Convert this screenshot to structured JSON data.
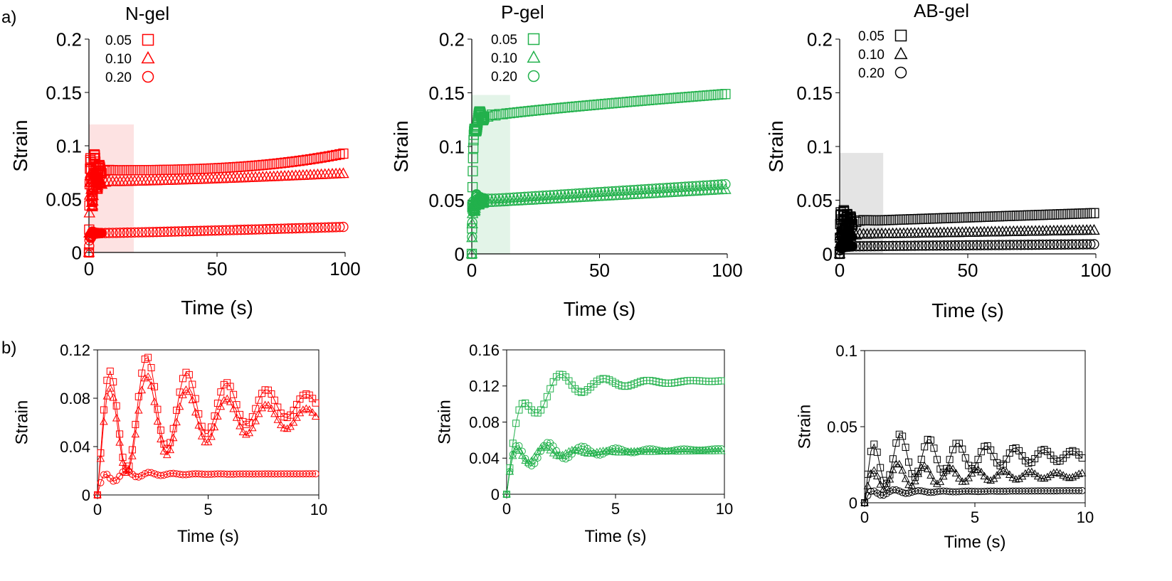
{
  "figure": {
    "panel_labels": [
      "a)",
      "b)"
    ]
  },
  "legend_labels": [
    "0.05",
    "0.10",
    "0.20"
  ],
  "chart_data": [
    {
      "id": "a1",
      "type": "scatter",
      "title": "N-gel",
      "color": "#ff0000",
      "xlabel": "Time (s)",
      "ylabel": "Strain",
      "xlim": [
        0,
        100
      ],
      "ylim": [
        0,
        0.2
      ],
      "xticks": [
        0,
        50,
        100
      ],
      "xtick_labels": [
        "0",
        "50",
        "100"
      ],
      "yticks": [
        0,
        0.05,
        0.1,
        0.15,
        0.2
      ],
      "ytick_labels": [
        "0",
        "0.05",
        "0.1",
        "0.15",
        "0.2"
      ],
      "shade": {
        "x": [
          0,
          17.5
        ],
        "y": [
          0,
          0.12
        ],
        "color": "#fde2e2"
      },
      "legend": "top-left",
      "series": [
        {
          "name": "0.05",
          "marker": "square",
          "model": {
            "A": 0.077,
            "final": 0.093,
            "tau": 0.4,
            "damp": 1.6,
            "period": 1.8,
            "amp": 0.8,
            "curve": 3,
            "sparse": 5
          }
        },
        {
          "name": "0.10",
          "marker": "triangle",
          "model": {
            "A": 0.066,
            "final": 0.074,
            "tau": 0.4,
            "damp": 1.6,
            "period": 1.8,
            "amp": 0.75,
            "curve": 1.4,
            "sparse": 5
          }
        },
        {
          "name": "0.20",
          "marker": "circle",
          "model": {
            "A": 0.018,
            "final": 0.024,
            "tau": 0.3,
            "damp": 1.0,
            "period": 1.1,
            "amp": 0.4,
            "curve": 1.2,
            "sparse": 5
          }
        }
      ]
    },
    {
      "id": "a2",
      "type": "scatter",
      "title": "P-gel",
      "color": "#22b14c",
      "xlabel": "Time (s)",
      "ylabel": "Strain",
      "xlim": [
        0,
        100
      ],
      "ylim": [
        0,
        0.2
      ],
      "xticks": [
        0,
        50,
        100
      ],
      "xtick_labels": [
        "0",
        "50",
        "100"
      ],
      "yticks": [
        0,
        0.05,
        0.1,
        0.15,
        0.2
      ],
      "ytick_labels": [
        "0",
        "0.05",
        "0.1",
        "0.15",
        "0.2"
      ],
      "shade": {
        "x": [
          0,
          15
        ],
        "y": [
          0,
          0.148
        ],
        "color": "#e3f4e8"
      },
      "legend": "top-left",
      "series": [
        {
          "name": "0.05",
          "marker": "square",
          "model": {
            "A": 0.126,
            "final": 0.149,
            "tau": 0.5,
            "damp": 2.5,
            "period": 2.5,
            "amp": 0.15,
            "curve": 0.8,
            "sparse": 5
          }
        },
        {
          "name": "0.10",
          "marker": "triangle",
          "model": {
            "A": 0.047,
            "final": 0.06,
            "tau": 0.3,
            "damp": 1.2,
            "period": 1.5,
            "amp": 0.35,
            "curve": 1,
            "sparse": 5
          }
        },
        {
          "name": "0.20",
          "marker": "circle",
          "model": {
            "A": 0.05,
            "final": 0.065,
            "tau": 0.3,
            "damp": 1.8,
            "period": 1.5,
            "amp": 0.3,
            "curve": 1,
            "sparse": 5
          }
        }
      ]
    },
    {
      "id": "a3",
      "type": "scatter",
      "title": "AB-gel",
      "color": "#000000",
      "xlabel": "Time (s)",
      "ylabel": "Strain",
      "xlim": [
        0,
        100
      ],
      "ylim": [
        0,
        0.2
      ],
      "xticks": [
        0,
        50,
        100
      ],
      "xtick_labels": [
        "0",
        "50",
        "100"
      ],
      "yticks": [
        0,
        0.05,
        0.1,
        0.15,
        0.2
      ],
      "ytick_labels": [
        "0",
        "0.05",
        "0.1",
        "0.15",
        "0.2"
      ],
      "shade": {
        "x": [
          0,
          17
        ],
        "y": [
          0,
          0.094
        ],
        "color": "#e4e4e4"
      },
      "legend": "top-left",
      "series": [
        {
          "name": "0.05",
          "marker": "square",
          "model": {
            "A": 0.03,
            "final": 0.038,
            "tau": 0.2,
            "damp": 3.0,
            "period": 1.3,
            "amp": 0.6,
            "curve": 1,
            "sparse": 5
          }
        },
        {
          "name": "0.10",
          "marker": "triangle",
          "model": {
            "A": 0.018,
            "final": 0.022,
            "tau": 0.2,
            "damp": 2.5,
            "period": 1.1,
            "amp": 0.6,
            "curve": 1,
            "sparse": 5
          }
        },
        {
          "name": "0.20",
          "marker": "circle",
          "model": {
            "A": 0.007,
            "final": 0.009,
            "tau": 0.2,
            "damp": 1.5,
            "period": 1.0,
            "amp": 0.4,
            "curve": 1,
            "sparse": 5
          }
        }
      ]
    },
    {
      "id": "b1",
      "type": "line",
      "title": "",
      "color": "#ff0000",
      "xlabel": "Time (s)",
      "ylabel": "Strain",
      "xlim": [
        0,
        10
      ],
      "ylim": [
        0,
        0.12
      ],
      "xticks": [
        0,
        5,
        10
      ],
      "xtick_labels": [
        "0",
        "5",
        "10"
      ],
      "yticks": [
        0,
        0.04,
        0.08,
        0.12
      ],
      "ytick_labels": [
        "0",
        "0.04",
        "0.08",
        "0.12"
      ],
      "series": [
        {
          "name": "0.05",
          "marker": "square",
          "model": {
            "A": 0.072,
            "final": 0.075,
            "tau": 0.35,
            "damp": 4.5,
            "period": 1.8,
            "amp": 0.95,
            "curve": 1,
            "sparse": 0
          }
        },
        {
          "name": "0.10",
          "marker": "triangle",
          "model": {
            "A": 0.062,
            "final": 0.064,
            "tau": 0.35,
            "damp": 4.5,
            "period": 1.8,
            "amp": 0.95,
            "curve": 1,
            "sparse": 0
          }
        },
        {
          "name": "0.20",
          "marker": "circle",
          "model": {
            "A": 0.017,
            "final": 0.0175,
            "tau": 0.25,
            "damp": 1.3,
            "period": 1.05,
            "amp": 0.55,
            "curve": 1,
            "sparse": 0
          }
        }
      ]
    },
    {
      "id": "b2",
      "type": "line",
      "title": "",
      "color": "#22b14c",
      "xlabel": "Time (s)",
      "ylabel": "Strain",
      "xlim": [
        0,
        10
      ],
      "ylim": [
        0,
        0.16
      ],
      "xticks": [
        0,
        5,
        10
      ],
      "xtick_labels": [
        "0",
        "5",
        "10"
      ],
      "yticks": [
        0,
        0.04,
        0.08,
        0.12,
        0.16
      ],
      "ytick_labels": [
        "0",
        "0.04",
        "0.08",
        "0.12",
        "0.16"
      ],
      "series": [
        {
          "name": "0.05",
          "marker": "square",
          "model": {
            "A": 0.12,
            "final": 0.126,
            "tau": 0.6,
            "damp": 2.2,
            "period": 2.0,
            "amp": 0.35,
            "curve": 1,
            "sparse": 0
          }
        },
        {
          "name": "0.10",
          "marker": "triangle",
          "model": {
            "A": 0.046,
            "final": 0.048,
            "tau": 0.25,
            "damp": 1.5,
            "period": 1.4,
            "amp": 0.45,
            "curve": 1,
            "sparse": 0
          }
        },
        {
          "name": "0.20",
          "marker": "circle",
          "model": {
            "A": 0.046,
            "final": 0.05,
            "tau": 0.25,
            "damp": 2.5,
            "period": 1.55,
            "amp": 0.5,
            "curve": 1,
            "sparse": 0
          }
        }
      ]
    },
    {
      "id": "b3",
      "type": "line",
      "title": "",
      "color": "#000000",
      "xlabel": "Time (s)",
      "ylabel": "Strain",
      "xlim": [
        0,
        10
      ],
      "ylim": [
        0,
        0.1
      ],
      "xticks": [
        0,
        5,
        10
      ],
      "xtick_labels": [
        "0",
        "5",
        "10"
      ],
      "yticks": [
        0,
        0.05,
        0.1
      ],
      "ytick_labels": [
        "0",
        "0.05",
        "0.1"
      ],
      "series": [
        {
          "name": "0.05",
          "marker": "square",
          "model": {
            "A": 0.03,
            "final": 0.031,
            "tau": 0.25,
            "damp": 5.0,
            "period": 1.3,
            "amp": 0.7,
            "curve": 1,
            "sparse": 0
          }
        },
        {
          "name": "0.10",
          "marker": "triangle",
          "model": {
            "A": 0.018,
            "final": 0.018,
            "tau": 0.25,
            "damp": 5.0,
            "period": 1.2,
            "amp": 0.6,
            "curve": 1,
            "sparse": 0
          }
        },
        {
          "name": "0.20",
          "marker": "circle",
          "model": {
            "A": 0.007,
            "final": 0.008,
            "tau": 0.2,
            "damp": 1.5,
            "period": 1.1,
            "amp": 0.5,
            "curve": 1,
            "sparse": 0
          }
        }
      ]
    }
  ]
}
